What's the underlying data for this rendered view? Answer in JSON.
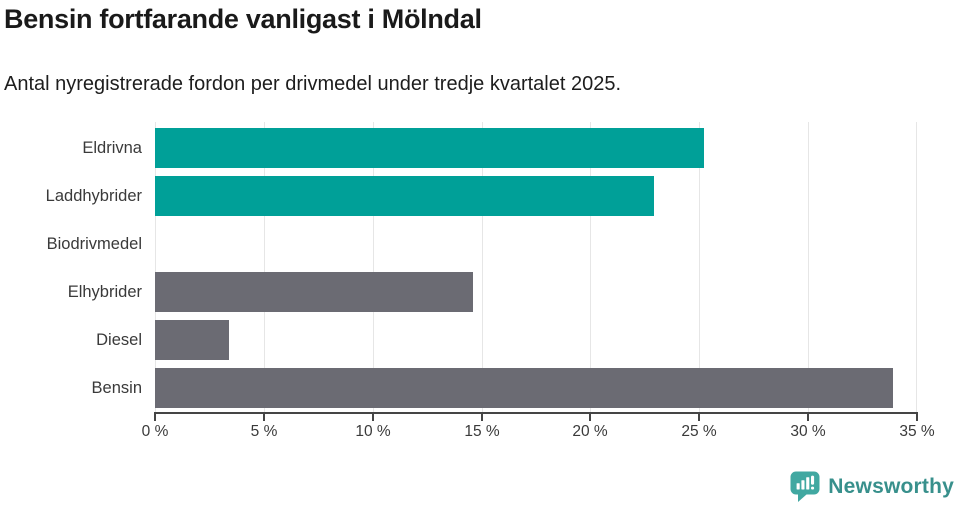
{
  "header": {
    "title": "Bensin fortfarande vanligast i Mölndal",
    "subtitle": "Antal nyregistrerade fordon per drivmedel under tredje kvartalet 2025."
  },
  "chart_data": {
    "type": "bar",
    "orientation": "horizontal",
    "title": "Bensin fortfarande vanligast i Mölndal",
    "subtitle": "Antal nyregistrerade fordon per drivmedel under tredje kvartalet 2025.",
    "categories": [
      "Eldrivna",
      "Laddhybrider",
      "Biodrivmedel",
      "Elhybrider",
      "Diesel",
      "Bensin"
    ],
    "values": [
      25.2,
      22.9,
      0,
      14.6,
      3.4,
      33.9
    ],
    "unit": "%",
    "bar_colors": [
      "#00A098",
      "#00A098",
      "#00A098",
      "#6B6B73",
      "#6B6B73",
      "#6B6B73"
    ],
    "xlabel": "",
    "ylabel": "",
    "xlim": [
      0,
      35
    ],
    "x_ticks": [
      0,
      5,
      10,
      15,
      20,
      25,
      30,
      35
    ],
    "x_tick_labels": [
      "0 %",
      "5 %",
      "10 %",
      "15 %",
      "20 %",
      "25 %",
      "30 %",
      "35 %"
    ],
    "grid": "vertical-only",
    "legend": "none"
  },
  "branding": {
    "logo_text": "Newsworthy",
    "logo_text_color": "#38908C",
    "logo_icon_color": "#41A8A1",
    "logo_icon": "newsworthy-speech-bubble-bar-chart-icon"
  },
  "colors": {
    "accent_teal": "#00A098",
    "neutral_gray": "#6B6B73",
    "gridline": "#E6E6E6",
    "axis": "#454545",
    "text_dark": "#1A1A1A",
    "text_label": "#3A3A3A",
    "background": "#FFFFFF"
  }
}
